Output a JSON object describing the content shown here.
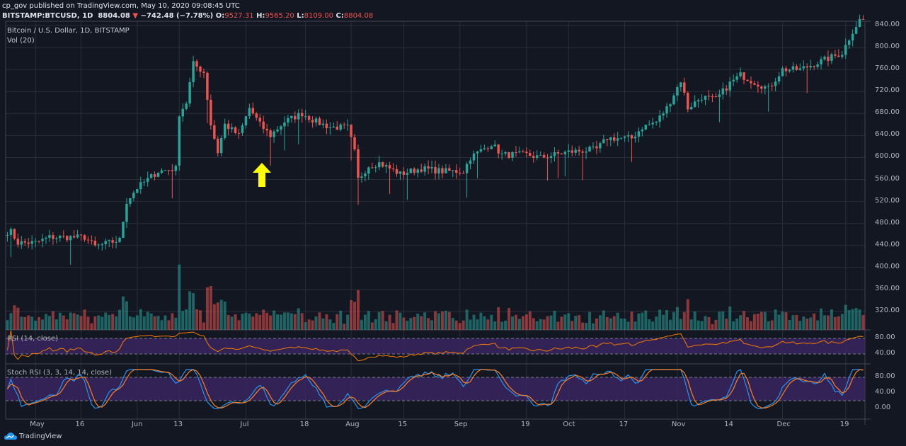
{
  "header": {
    "publisher_line": "cp_gov published on TradingView.com, May 10, 2020 09:08:45 UTC",
    "symbol": "BITSTAMP:BTCUSD, 1D",
    "last": "8804.08",
    "change": "−742.48 (−7.78%)",
    "open_label": "O:",
    "open": "9527.31",
    "high_label": "H:",
    "high": "9565.20",
    "low_label": "L:",
    "low": "8109.00",
    "close_label": "C:",
    "close": "8804.08",
    "down_arrow_icon": "triangle-down"
  },
  "legend": {
    "title": "Bitcoin / U.S. Dollar, 1D, BITSTAMP",
    "volume": "Vol (20)"
  },
  "indicators": {
    "rsi": "RSI (14, close)",
    "stoch": "Stoch RSI (3, 3, 14, 14, close)"
  },
  "colors": {
    "up": "#26a69a",
    "down": "#ef5350",
    "bg": "#131722",
    "grid": "#2a2e39",
    "rsi": "#f57c00",
    "stoch_k": "#2196f3",
    "stoch_d": "#ff7f1f",
    "band": "#3b2563",
    "annotation": "#ffff00"
  },
  "footer": {
    "brand": "TradingView"
  },
  "chart_data": {
    "type": "candlestick",
    "price_ticks": [
      "840.00",
      "800.00",
      "760.00",
      "720.00",
      "680.00",
      "640.00",
      "600.00",
      "560.00",
      "520.00",
      "480.00",
      "440.00",
      "400.00",
      "360.00",
      "320.00"
    ],
    "price_tick_values": [
      840,
      800,
      760,
      720,
      680,
      640,
      600,
      560,
      520,
      480,
      440,
      400,
      360,
      320
    ],
    "ylim": [
      290,
      848
    ],
    "rsi_ticks": [
      "80.00",
      "40.00"
    ],
    "stoch_ticks": [
      "80.00",
      "40.00",
      "0.00"
    ],
    "x_ticks": [
      "May",
      "16",
      "Jun",
      "13",
      "Jul",
      "18",
      "Aug",
      "15",
      "Sep",
      "19",
      "Oct",
      "17",
      "Nov",
      "14",
      "Dec",
      "19"
    ],
    "x_tick_days": [
      8,
      21,
      37,
      49,
      68,
      85,
      98,
      113,
      129,
      148,
      160,
      176,
      191,
      206,
      221,
      239
    ],
    "total_days": 245,
    "close_keypoints": [
      [
        1,
        465
      ],
      [
        3,
        445
      ],
      [
        8,
        445
      ],
      [
        12,
        455
      ],
      [
        22,
        455
      ],
      [
        25,
        438
      ],
      [
        32,
        450
      ],
      [
        34,
        520
      ],
      [
        37,
        545
      ],
      [
        40,
        560
      ],
      [
        43,
        575
      ],
      [
        48,
        580
      ],
      [
        49,
        680
      ],
      [
        51,
        700
      ],
      [
        53,
        770
      ],
      [
        56,
        755
      ],
      [
        58,
        660
      ],
      [
        60,
        610
      ],
      [
        62,
        660
      ],
      [
        66,
        640
      ],
      [
        69,
        690
      ],
      [
        72,
        660
      ],
      [
        75,
        640
      ],
      [
        79,
        665
      ],
      [
        84,
        680
      ],
      [
        88,
        665
      ],
      [
        92,
        655
      ],
      [
        97,
        655
      ],
      [
        99,
        610
      ],
      [
        100,
        560
      ],
      [
        103,
        585
      ],
      [
        106,
        590
      ],
      [
        112,
        570
      ],
      [
        118,
        580
      ],
      [
        124,
        575
      ],
      [
        130,
        575
      ],
      [
        132,
        600
      ],
      [
        138,
        625
      ],
      [
        141,
        605
      ],
      [
        148,
        605
      ],
      [
        152,
        600
      ],
      [
        160,
        610
      ],
      [
        168,
        615
      ],
      [
        171,
        635
      ],
      [
        178,
        635
      ],
      [
        181,
        655
      ],
      [
        185,
        665
      ],
      [
        188,
        690
      ],
      [
        192,
        740
      ],
      [
        194,
        690
      ],
      [
        198,
        710
      ],
      [
        202,
        705
      ],
      [
        206,
        735
      ],
      [
        209,
        750
      ],
      [
        212,
        740
      ],
      [
        217,
        725
      ],
      [
        221,
        760
      ],
      [
        226,
        760
      ],
      [
        232,
        775
      ],
      [
        238,
        790
      ],
      [
        241,
        830
      ],
      [
        243,
        850
      ]
    ],
    "annotation": "up-arrow"
  }
}
